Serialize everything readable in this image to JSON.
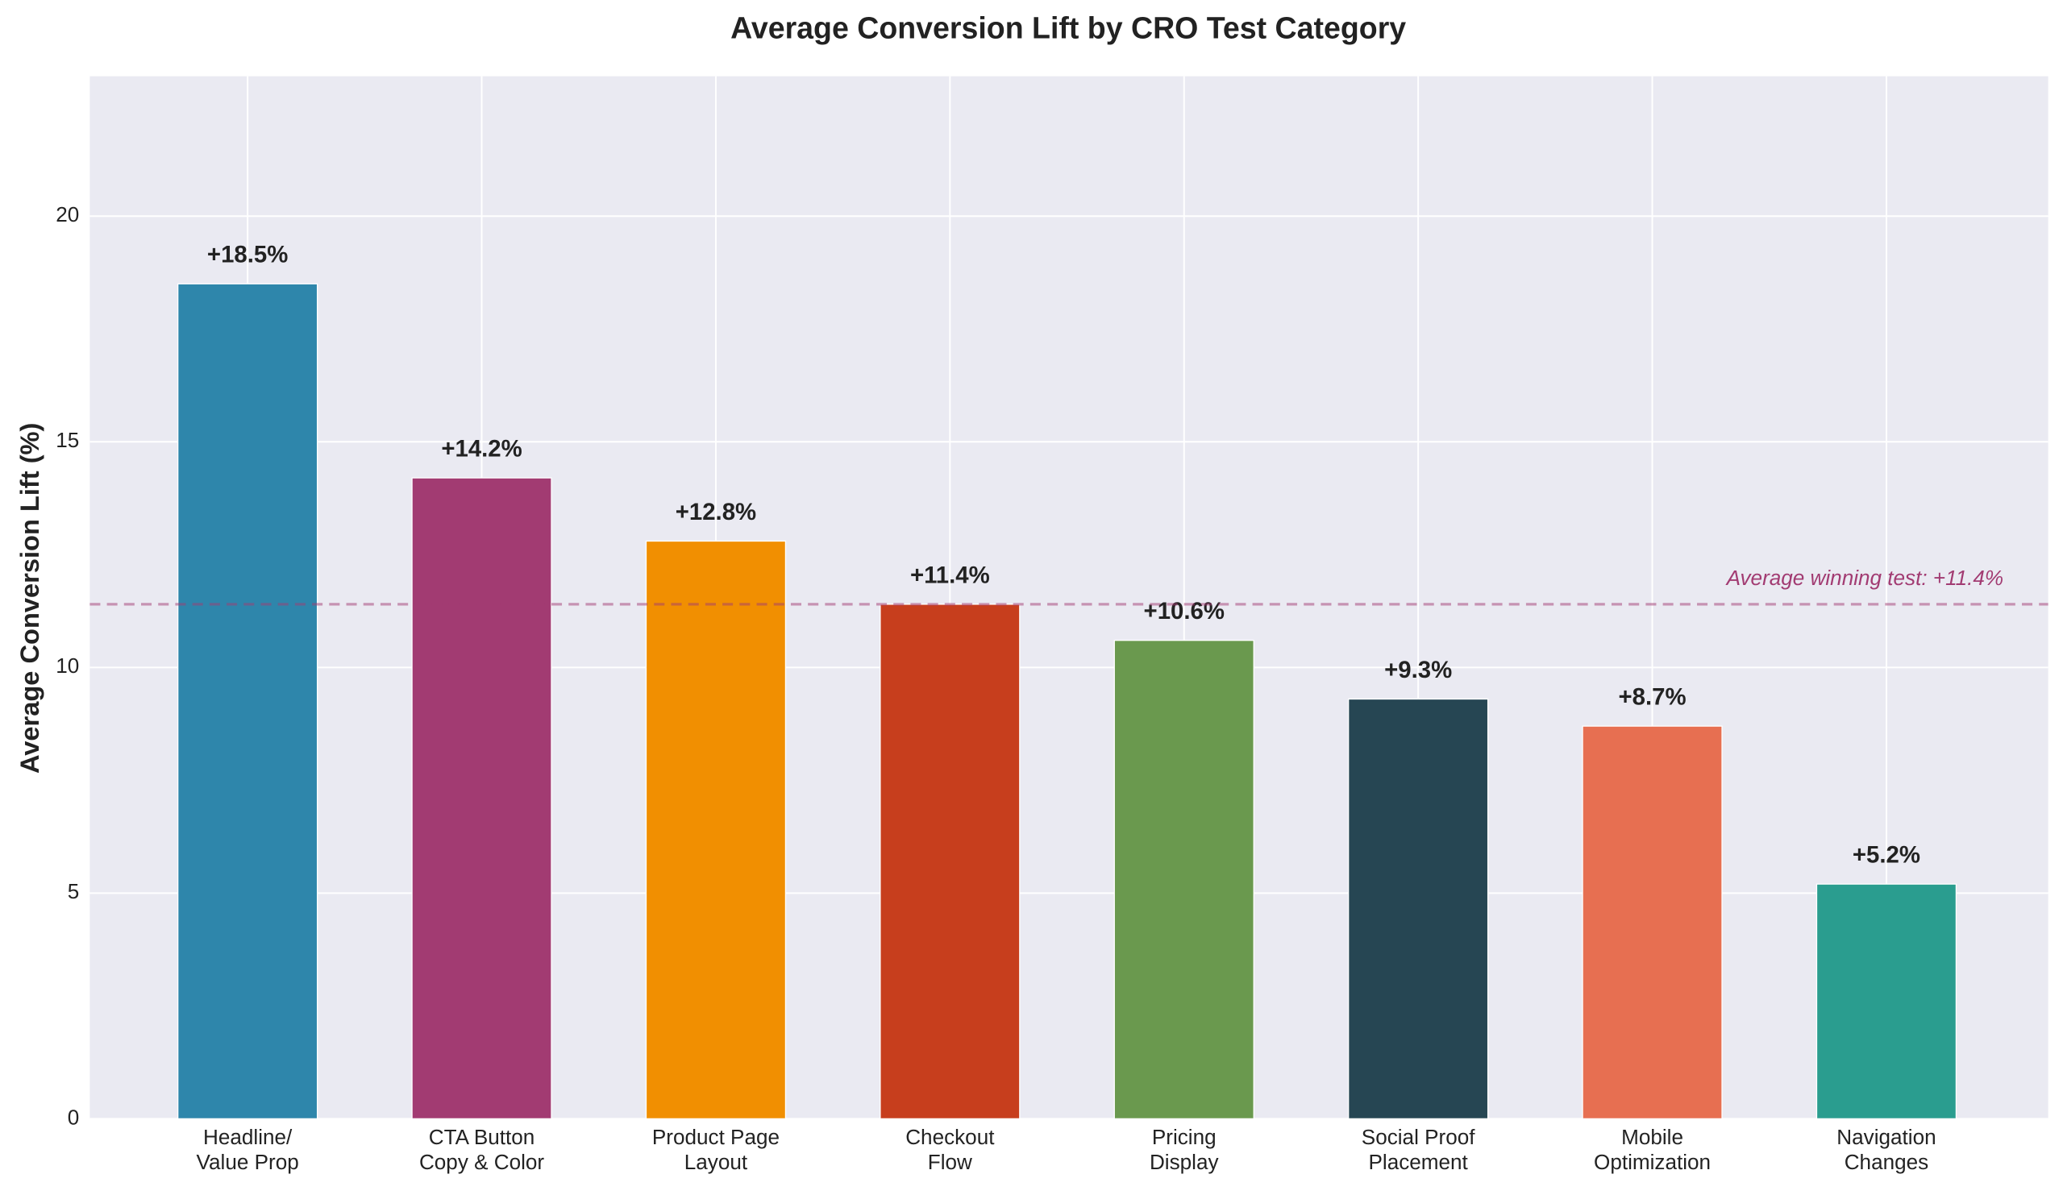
{
  "chart_data": {
    "type": "bar",
    "title": "Average Conversion Lift by CRO Test Category",
    "y_label": "Average Conversion Lift (%)",
    "categories": [
      "Headline/\nValue Prop",
      "CTA Button\nCopy & Color",
      "Product Page\nLayout",
      "Checkout\nFlow",
      "Pricing\nDisplay",
      "Social Proof\nPlacement",
      "Mobile\nOptimization",
      "Navigation\nChanges"
    ],
    "values": [
      18.5,
      14.2,
      12.8,
      11.4,
      10.6,
      9.3,
      8.7,
      5.2
    ],
    "value_labels": [
      "+18.5%",
      "+14.2%",
      "+12.8%",
      "+11.4%",
      "+10.6%",
      "+9.3%",
      "+8.7%",
      "+5.2%"
    ],
    "colors": [
      "#2E86AB",
      "#A23B72",
      "#F18F01",
      "#C73E1D",
      "#6A994E",
      "#264653",
      "#E76F51",
      "#2A9D8F"
    ],
    "ylim": [
      0,
      23.1
    ],
    "yticks": [
      0,
      5,
      10,
      15,
      20
    ],
    "grid": true,
    "reference_line": {
      "value": 11.4,
      "label": "Average winning test: +11.4%",
      "color": "#A23B72"
    }
  }
}
